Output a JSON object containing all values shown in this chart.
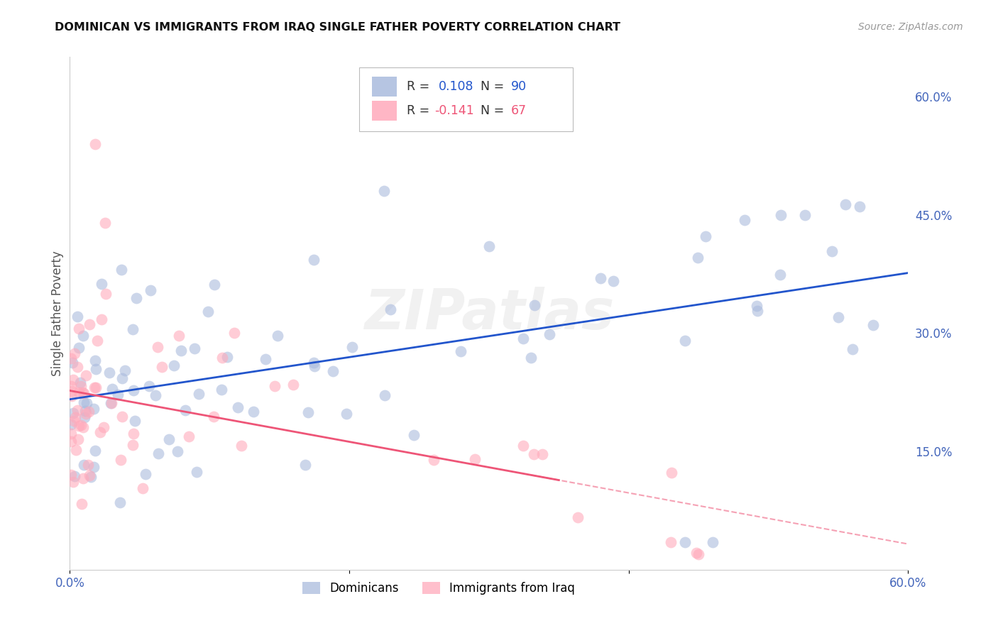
{
  "title": "DOMINICAN VS IMMIGRANTS FROM IRAQ SINGLE FATHER POVERTY CORRELATION CHART",
  "source": "Source: ZipAtlas.com",
  "ylabel": "Single Father Poverty",
  "right_ytick_labels": [
    "60.0%",
    "45.0%",
    "30.0%",
    "15.0%"
  ],
  "right_ytick_values": [
    0.6,
    0.45,
    0.3,
    0.15
  ],
  "xlim": [
    0.0,
    0.6
  ],
  "ylim": [
    0.0,
    0.65
  ],
  "xtick_labels": [
    "0.0%",
    "",
    "",
    "60.0%"
  ],
  "xtick_values": [
    0.0,
    0.2,
    0.4,
    0.6
  ],
  "watermark": "ZIPatlas",
  "dominican_color": "#aabbdd",
  "iraq_color": "#ffaabb",
  "trend_dominican_color": "#2255cc",
  "trend_iraq_color": "#ee5577",
  "grid_color": "#cccccc",
  "axis_tick_color": "#4466bb",
  "background_color": "#ffffff",
  "dominican_R": 0.108,
  "dominican_N": 90,
  "iraq_R": -0.141,
  "iraq_N": 67,
  "legend_blue_color": "#aabbdd",
  "legend_pink_color": "#ffaabb",
  "legend_text_color": "#333333",
  "legend_value_color": "#2255cc",
  "legend_iraq_value_color": "#ee5577"
}
